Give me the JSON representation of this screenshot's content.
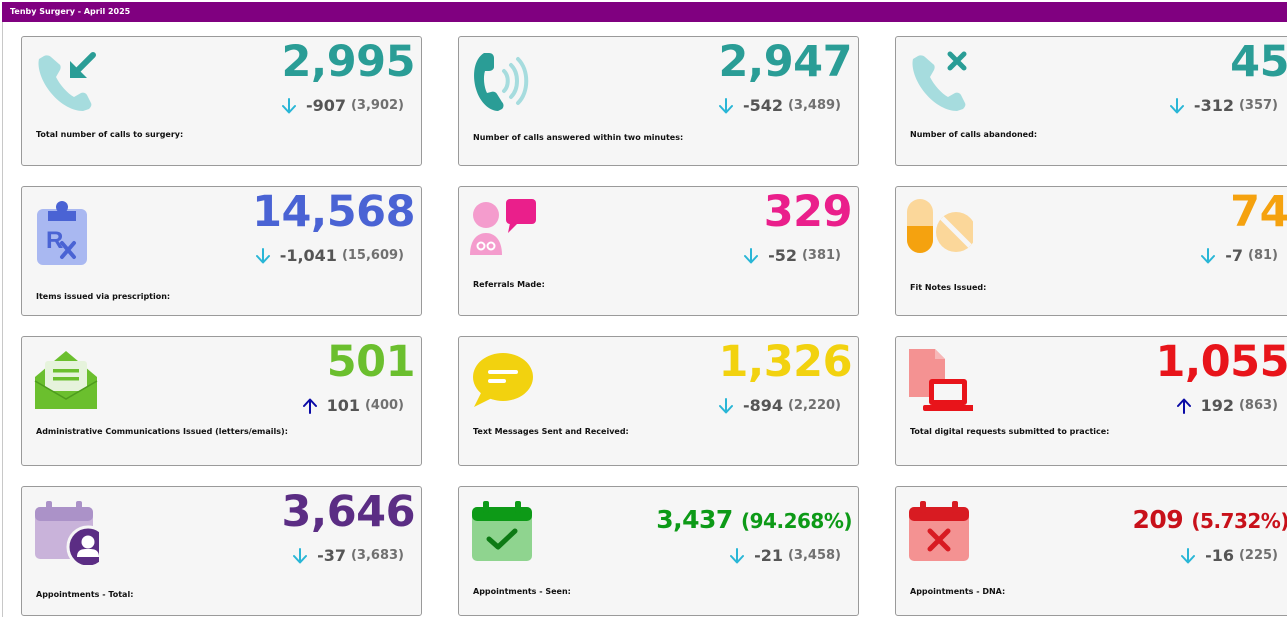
{
  "header": {
    "title": "Tenby Surgery - April 2025",
    "bar_color": "#800080"
  },
  "colors": {
    "down_arrow": "#29b6d6",
    "up_arrow": "#0a0aa6",
    "delta_text": "#555555",
    "prev_text": "#707070"
  },
  "cards": [
    {
      "value": "2,995",
      "delta": "-907",
      "previous": "(3,902)",
      "direction": "down",
      "label": "Total number of calls to surgery:",
      "icon": "incoming-call-icon",
      "color": "#2a9d96"
    },
    {
      "value": "2,947",
      "delta": "-542",
      "previous": "(3,489)",
      "direction": "down",
      "label": "Number of calls answered within two minutes:",
      "icon": "ringing-phone-icon",
      "color": "#2a9d96"
    },
    {
      "value": "45",
      "delta": "-312",
      "previous": "(357)",
      "direction": "down",
      "label": "Number of calls abandoned:",
      "icon": "missed-call-icon",
      "color": "#2a9d96"
    },
    {
      "value": "14,568",
      "delta": "-1,041",
      "previous": "(15,609)",
      "direction": "down",
      "label": "Items issued via prescription:",
      "icon": "prescription-clipboard-icon",
      "color": "#4a63d4"
    },
    {
      "value": "329",
      "delta": "-52",
      "previous": "(381)",
      "direction": "down",
      "label": "Referrals Made:",
      "icon": "doctor-referral-icon",
      "color": "#ea1f8b"
    },
    {
      "value": "74",
      "delta": "-7",
      "previous": "(81)",
      "direction": "down",
      "label": "Fit Notes Issued:",
      "icon": "pills-icon",
      "color": "#f5a20f"
    },
    {
      "value": "501",
      "delta": "101",
      "previous": "(400)",
      "direction": "up",
      "label": "Administrative Communications Issued (letters/emails):",
      "icon": "envelope-letter-icon",
      "color": "#6bbf2e"
    },
    {
      "value": "1,326",
      "delta": "-894",
      "previous": "(2,220)",
      "direction": "down",
      "label": "Text Messages Sent and Received:",
      "icon": "chat-bubble-icon",
      "color": "#f2d20f"
    },
    {
      "value": "1,055",
      "delta": "192",
      "previous": "(863)",
      "direction": "up",
      "label": "Total digital requests submitted to practice:",
      "icon": "laptop-document-icon",
      "color": "#e8141a"
    },
    {
      "value": "3,646",
      "delta": "-37",
      "previous": "(3,683)",
      "direction": "down",
      "label": "Appointments - Total:",
      "icon": "calendar-user-icon",
      "color": "#5b2d84"
    },
    {
      "value": "3,437",
      "pct": "(94.268%)",
      "delta": "-21",
      "previous": "(3,458)",
      "direction": "down",
      "label": "Appointments - Seen:",
      "icon": "calendar-check-icon",
      "color": "#0d9a17"
    },
    {
      "value": "209",
      "pct": "(5.732%)",
      "delta": "-16",
      "previous": "(225)",
      "direction": "down",
      "label": "Appointments - DNA:",
      "icon": "calendar-cross-icon",
      "color": "#c8111a"
    }
  ]
}
